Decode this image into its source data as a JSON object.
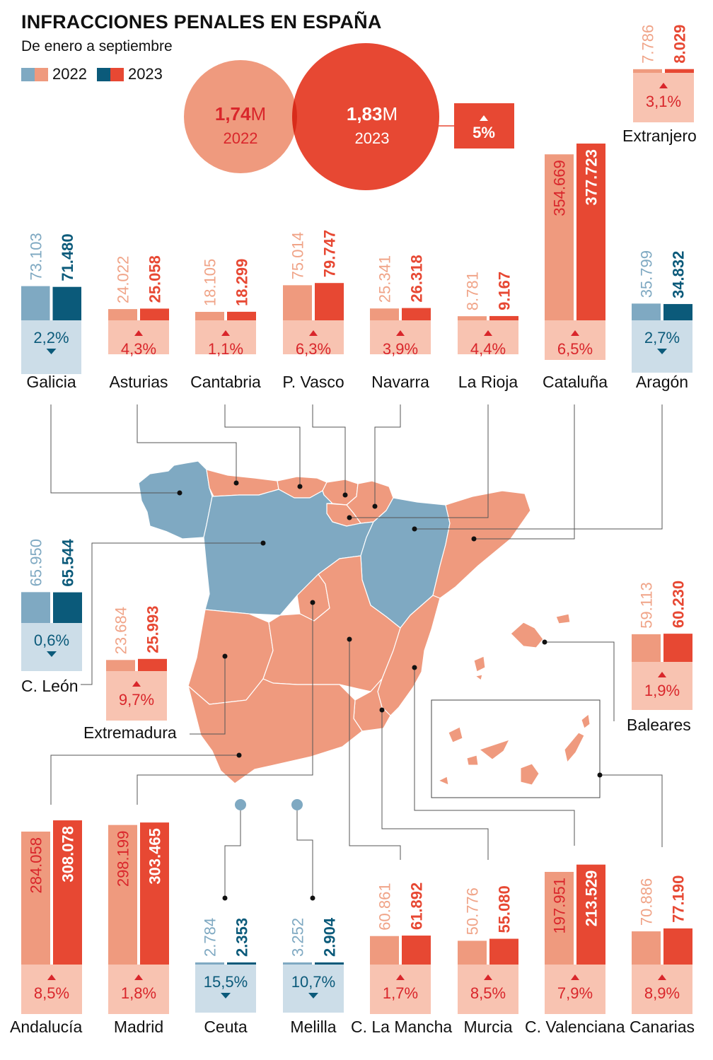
{
  "header": {
    "title": "INFRACCIONES PENALES EN ESPAÑA",
    "subtitle": "De enero a septiembre",
    "legend": [
      {
        "label": "2022"
      },
      {
        "label": "2023"
      }
    ]
  },
  "colors": {
    "increase_2022": "#ef9a7e",
    "increase_2023": "#e74833",
    "increase_bg": "#f8c3b1",
    "increase_text": "#d9262b",
    "increase_label_2022": "#f0a488",
    "decrease_2022": "#7fa9c2",
    "decrease_2023": "#0b5a7a",
    "decrease_bg": "#ccdde8",
    "decrease_text": "#0b5a7a",
    "decrease_label_2022": "#7fa9c2",
    "map_increase": "#ef9a7e",
    "map_decrease": "#7fa9c2"
  },
  "totals": {
    "value_2022": "1,74",
    "value_2023": "1,83",
    "unit": "M",
    "year_2022": "2022",
    "year_2023": "2023",
    "change": "5%",
    "direction": "up"
  },
  "chart_data": {
    "type": "bar",
    "title": "INFRACCIONES PENALES EN ESPAÑA",
    "subtitle": "De enero a septiembre",
    "series_names": [
      "2022",
      "2023"
    ],
    "regions": [
      {
        "name": "Galicia",
        "v2022": 73103,
        "v2023": 71480,
        "l2022": "73.103",
        "l2023": "71.480",
        "change": "2,2%",
        "dir": "down"
      },
      {
        "name": "Asturias",
        "v2022": 24022,
        "v2023": 25058,
        "l2022": "24.022",
        "l2023": "25.058",
        "change": "4,3%",
        "dir": "up"
      },
      {
        "name": "Cantabria",
        "v2022": 18105,
        "v2023": 18299,
        "l2022": "18.105",
        "l2023": "18.299",
        "change": "1,1%",
        "dir": "up"
      },
      {
        "name": "P. Vasco",
        "v2022": 75014,
        "v2023": 79747,
        "l2022": "75.014",
        "l2023": "79.747",
        "change": "6,3%",
        "dir": "up"
      },
      {
        "name": "Navarra",
        "v2022": 25341,
        "v2023": 26318,
        "l2022": "25.341",
        "l2023": "26.318",
        "change": "3,9%",
        "dir": "up"
      },
      {
        "name": "La Rioja",
        "v2022": 8781,
        "v2023": 9167,
        "l2022": "8.781",
        "l2023": "9.167",
        "change": "4,4%",
        "dir": "up"
      },
      {
        "name": "Cataluña",
        "v2022": 354669,
        "v2023": 377723,
        "l2022": "354.669",
        "l2023": "377.723",
        "change": "6,5%",
        "dir": "up"
      },
      {
        "name": "Aragón",
        "v2022": 35799,
        "v2023": 34832,
        "l2022": "35.799",
        "l2023": "34.832",
        "change": "2,7%",
        "dir": "down"
      },
      {
        "name": "Extranjero",
        "v2022": 7786,
        "v2023": 8029,
        "l2022": "7.786",
        "l2023": "8.029",
        "change": "3,1%",
        "dir": "up"
      },
      {
        "name": "C. León",
        "v2022": 65950,
        "v2023": 65544,
        "l2022": "65.950",
        "l2023": "65.544",
        "change": "0,6%",
        "dir": "down"
      },
      {
        "name": "Extremadura",
        "v2022": 23684,
        "v2023": 25993,
        "l2022": "23.684",
        "l2023": "25.993",
        "change": "9,7%",
        "dir": "up"
      },
      {
        "name": "Baleares",
        "v2022": 59113,
        "v2023": 60230,
        "l2022": "59.113",
        "l2023": "60.230",
        "change": "1,9%",
        "dir": "up"
      },
      {
        "name": "Andalucía",
        "v2022": 284058,
        "v2023": 308078,
        "l2022": "284.058",
        "l2023": "308.078",
        "change": "8,5%",
        "dir": "up"
      },
      {
        "name": "Madrid",
        "v2022": 298199,
        "v2023": 303465,
        "l2022": "298.199",
        "l2023": "303.465",
        "change": "1,8%",
        "dir": "up"
      },
      {
        "name": "Ceuta",
        "v2022": 2784,
        "v2023": 2353,
        "l2022": "2.784",
        "l2023": "2.353",
        "change": "15,5%",
        "dir": "down"
      },
      {
        "name": "Melilla",
        "v2022": 3252,
        "v2023": 2904,
        "l2022": "3.252",
        "l2023": "2.904",
        "change": "10,7%",
        "dir": "down"
      },
      {
        "name": "C. La Mancha",
        "v2022": 60861,
        "v2023": 61892,
        "l2022": "60.861",
        "l2023": "61.892",
        "change": "1,7%",
        "dir": "up"
      },
      {
        "name": "Murcia",
        "v2022": 50776,
        "v2023": 55080,
        "l2022": "50.776",
        "l2023": "55.080",
        "change": "8,5%",
        "dir": "up"
      },
      {
        "name": "C. Valenciana",
        "v2022": 197951,
        "v2023": 213529,
        "l2022": "197.951",
        "l2023": "213.529",
        "change": "7,9%",
        "dir": "up"
      },
      {
        "name": "Canarias",
        "v2022": 70886,
        "v2023": 77190,
        "l2022": "70.886",
        "l2023": "77.190",
        "change": "8,9%",
        "dir": "up"
      }
    ]
  }
}
